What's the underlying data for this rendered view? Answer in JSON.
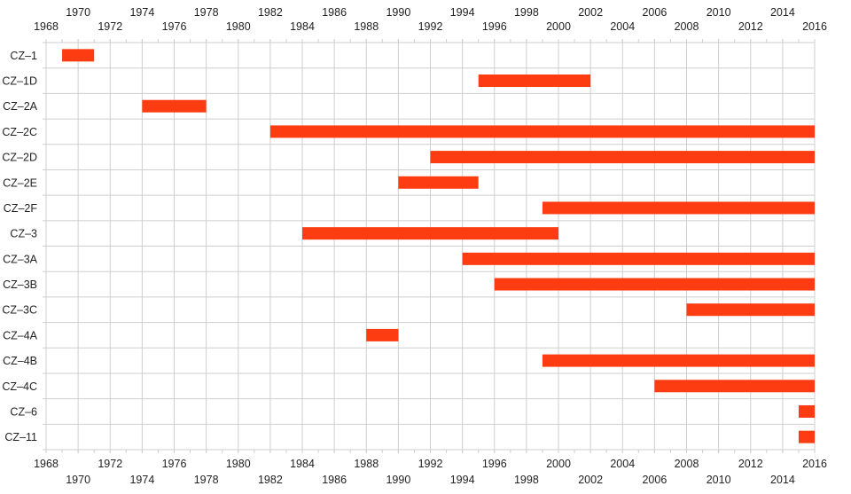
{
  "chart_data": {
    "type": "gantt",
    "title": "",
    "xlabel": "",
    "ylabel": "",
    "xlim": [
      1968,
      2016
    ],
    "x_ticks_major": [
      1968,
      1970,
      1972,
      1974,
      1976,
      1978,
      1980,
      1982,
      1984,
      1986,
      1988,
      1990,
      1992,
      1994,
      1996,
      1998,
      2000,
      2002,
      2004,
      2006,
      2008,
      2010,
      2012,
      2014,
      2016
    ],
    "grid": true,
    "bar_color": "#fd3c12",
    "grid_color": "#cfcfcf",
    "tasks": [
      {
        "label": "CZ–1",
        "start": 1969,
        "end": 1971
      },
      {
        "label": "CZ–1D",
        "start": 1995,
        "end": 2002
      },
      {
        "label": "CZ–2A",
        "start": 1974,
        "end": 1978
      },
      {
        "label": "CZ–2C",
        "start": 1982,
        "end": 2016
      },
      {
        "label": "CZ–2D",
        "start": 1992,
        "end": 2016
      },
      {
        "label": "CZ–2E",
        "start": 1990,
        "end": 1995
      },
      {
        "label": "CZ–2F",
        "start": 1999,
        "end": 2016
      },
      {
        "label": "CZ–3",
        "start": 1984,
        "end": 2000
      },
      {
        "label": "CZ–3A",
        "start": 1994,
        "end": 2016
      },
      {
        "label": "CZ–3B",
        "start": 1996,
        "end": 2016
      },
      {
        "label": "CZ–3C",
        "start": 2008,
        "end": 2016
      },
      {
        "label": "CZ–4A",
        "start": 1988,
        "end": 1990
      },
      {
        "label": "CZ–4B",
        "start": 1999,
        "end": 2016
      },
      {
        "label": "CZ–4C",
        "start": 2006,
        "end": 2016
      },
      {
        "label": "CZ–6",
        "start": 2015,
        "end": 2016
      },
      {
        "label": "CZ–11",
        "start": 2015,
        "end": 2016
      }
    ]
  }
}
